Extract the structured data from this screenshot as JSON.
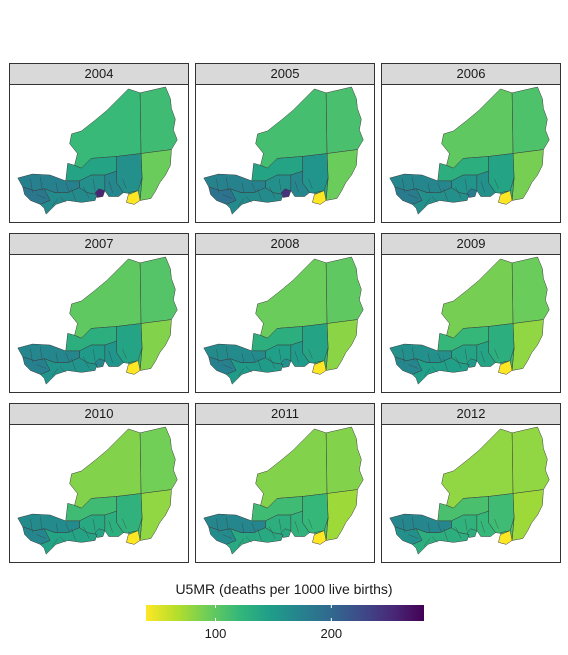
{
  "panels": [
    {
      "year": "2004",
      "regions": {
        "northwest": 118,
        "northeast": 115,
        "tillaberi": 175,
        "niamey": 185,
        "southwest": 165,
        "tahoua": 140,
        "dosso": 160,
        "maradi": 170,
        "zinder_hot": 255,
        "zinder": 160,
        "diffa_south": 130,
        "diffa": 95,
        "lake": 40
      }
    },
    {
      "year": "2005",
      "regions": {
        "northwest": 112,
        "northeast": 110,
        "tillaberi": 172,
        "niamey": 190,
        "southwest": 165,
        "tahoua": 140,
        "dosso": 160,
        "maradi": 170,
        "zinder_hot": 245,
        "zinder": 155,
        "diffa_south": 140,
        "diffa": 95,
        "lake": 40
      }
    },
    {
      "year": "2006",
      "regions": {
        "northwest": 100,
        "northeast": 108,
        "tillaberi": 170,
        "niamey": 180,
        "southwest": 160,
        "tahoua": 130,
        "dosso": 155,
        "maradi": 160,
        "zinder_hot": 180,
        "zinder": 140,
        "diffa_south": 130,
        "diffa": 90,
        "lake": 40
      }
    },
    {
      "year": "2007",
      "regions": {
        "northwest": 100,
        "northeast": 105,
        "tillaberi": 170,
        "niamey": 175,
        "southwest": 155,
        "tahoua": 130,
        "dosso": 150,
        "maradi": 155,
        "zinder_hot": 170,
        "zinder": 140,
        "diffa_south": 125,
        "diffa": 85,
        "lake": 40
      }
    },
    {
      "year": "2008",
      "regions": {
        "northwest": 95,
        "northeast": 100,
        "tillaberi": 165,
        "niamey": 175,
        "southwest": 150,
        "tahoua": 130,
        "dosso": 145,
        "maradi": 150,
        "zinder_hot": 160,
        "zinder": 140,
        "diffa_south": 125,
        "diffa": 82,
        "lake": 40
      }
    },
    {
      "year": "2009",
      "regions": {
        "northwest": 90,
        "northeast": 95,
        "tillaberi": 160,
        "niamey": 170,
        "southwest": 145,
        "tahoua": 120,
        "dosso": 140,
        "maradi": 140,
        "zinder_hot": 150,
        "zinder": 130,
        "diffa_south": 120,
        "diffa": 80,
        "lake": 40
      }
    },
    {
      "year": "2010",
      "regions": {
        "northwest": 85,
        "northeast": 92,
        "tillaberi": 165,
        "niamey": 170,
        "southwest": 140,
        "tahoua": 115,
        "dosso": 135,
        "maradi": 130,
        "zinder_hot": 140,
        "zinder": 125,
        "diffa_south": 115,
        "diffa": 80,
        "lake": 40
      }
    },
    {
      "year": "2011",
      "regions": {
        "northwest": 85,
        "northeast": 85,
        "tillaberi": 170,
        "niamey": 165,
        "southwest": 135,
        "tahoua": 115,
        "dosso": 130,
        "maradi": 125,
        "zinder_hot": 135,
        "zinder": 120,
        "diffa_south": 115,
        "diffa": 75,
        "lake": 40
      }
    },
    {
      "year": "2012",
      "regions": {
        "northwest": 80,
        "northeast": 80,
        "tillaberi": 170,
        "niamey": 160,
        "southwest": 130,
        "tahoua": 110,
        "dosso": 125,
        "maradi": 120,
        "zinder_hot": 130,
        "zinder": 115,
        "diffa_south": 110,
        "diffa": 75,
        "lake": 40
      }
    }
  ],
  "legend": {
    "title": "U5MR (deaths per 1000 live births)",
    "min": 40,
    "max": 280,
    "ticks": [
      {
        "label": "100",
        "value": 100
      },
      {
        "label": "200",
        "value": 200
      }
    ],
    "palette": [
      "#FDE725",
      "#B4DE2C",
      "#6DCD59",
      "#35B779",
      "#1F9E89",
      "#26828E",
      "#31688E",
      "#3E4A89",
      "#482878",
      "#440154"
    ]
  }
}
